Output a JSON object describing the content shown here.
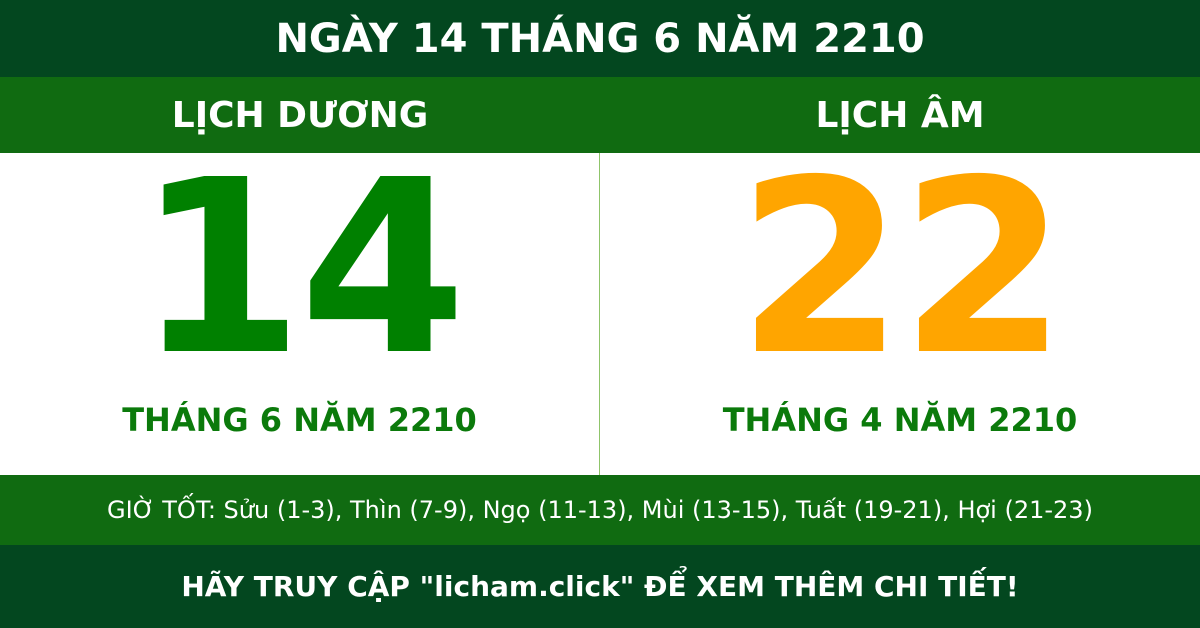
{
  "title": "NGÀY 14 THÁNG 6 NĂM 2210",
  "solar": {
    "heading": "LỊCH DƯƠNG",
    "day": "14",
    "month_year": "THÁNG 6 NĂM 2210"
  },
  "lunar": {
    "heading": "LỊCH ÂM",
    "day": "22",
    "month_year": "THÁNG 4 NĂM 2210"
  },
  "good_hours": "GIỜ TỐT: Sửu (1-3), Thìn (7-9), Ngọ (11-13), Mùi (13-15), Tuất (19-21), Hợi (21-23)",
  "footer": "HÃY TRUY CẬP \"licham.click\" ĐỂ XEM THÊM CHI TIẾT!",
  "colors": {
    "dark_green": "#03471f",
    "green": "#106b11",
    "solar_day": "#008000",
    "lunar_day": "#ffa500"
  }
}
